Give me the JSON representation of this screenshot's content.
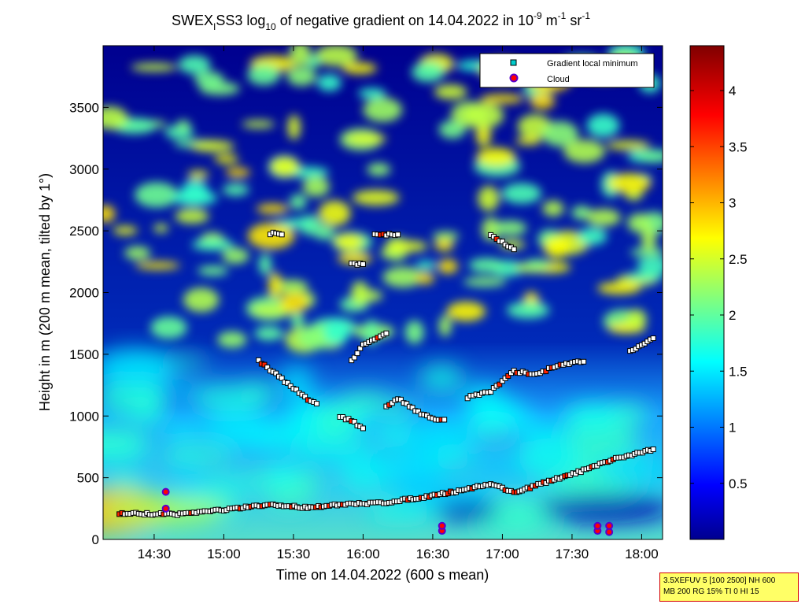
{
  "chart_data": {
    "type": "heatmap",
    "title": {
      "main": "SWEX",
      "main_sub": "I",
      "main_rest": "SS3 log",
      "log_sub": "10",
      "middle": " of negative gradient on 14.04.2022 in 10",
      "exp1": "-9",
      "unit_mid": " m",
      "exp2": "-1",
      "unit_sr": " sr",
      "exp3": "-1"
    },
    "xlabel": "Time on 14.04.2022 (600 s mean)",
    "ylabel": "Height in m (200 m mean, tilted by 1°)",
    "xlim": [
      "14:08",
      "18:09"
    ],
    "ylim": [
      0,
      4000
    ],
    "x_ticks": [
      "14:30",
      "15:00",
      "15:30",
      "16:00",
      "16:30",
      "17:00",
      "17:30",
      "18:00"
    ],
    "y_ticks": [
      0,
      500,
      1000,
      1500,
      2000,
      2500,
      3000,
      3500
    ],
    "colorbar": {
      "range": [
        0,
        4.4
      ],
      "ticks": [
        "0.5",
        "1",
        "1.5",
        "2",
        "2.5",
        "3",
        "3.5",
        "4"
      ],
      "colormap": "jet"
    },
    "legend": {
      "position": "top-right",
      "entries": [
        {
          "label": "Gradient local minimum",
          "marker": "square",
          "color": "#00cccc"
        },
        {
          "label": "Cloud",
          "marker": "circle",
          "color": "#ff0000"
        }
      ]
    },
    "gradient_minima_layers": [
      {
        "time": [
          "14:15",
          "14:40",
          "15:00",
          "15:20",
          "15:35",
          "15:50",
          "16:10",
          "16:25",
          "16:40",
          "16:55",
          "17:05",
          "17:20",
          "17:35",
          "17:50",
          "18:05"
        ],
        "height": [
          210,
          205,
          240,
          280,
          260,
          280,
          300,
          340,
          390,
          450,
          380,
          470,
          560,
          660,
          730
        ]
      },
      {
        "time": [
          "15:15",
          "15:25",
          "15:35",
          "15:40"
        ],
        "height": [
          1450,
          1300,
          1150,
          1100
        ]
      },
      {
        "time": [
          "15:50",
          "15:55",
          "16:00"
        ],
        "height": [
          1000,
          960,
          900
        ]
      },
      {
        "time": [
          "16:10",
          "16:15",
          "16:25",
          "16:30",
          "16:35"
        ],
        "height": [
          1080,
          1140,
          1020,
          980,
          970
        ]
      },
      {
        "time": [
          "16:45",
          "16:55",
          "17:05",
          "17:15",
          "17:25",
          "17:35"
        ],
        "height": [
          1150,
          1200,
          1360,
          1340,
          1420,
          1440
        ]
      },
      {
        "time": [
          "17:55",
          "18:05"
        ],
        "height": [
          1520,
          1630
        ]
      },
      {
        "time": [
          "15:55",
          "16:00",
          "16:05",
          "16:10"
        ],
        "height": [
          1450,
          1580,
          1620,
          1670
        ]
      },
      {
        "time": [
          "15:20",
          "15:25"
        ],
        "height": [
          2480,
          2470
        ]
      },
      {
        "time": [
          "15:55",
          "16:00"
        ],
        "height": [
          2230,
          2230
        ]
      },
      {
        "time": [
          "16:05",
          "16:10",
          "16:15"
        ],
        "height": [
          2470,
          2470,
          2470
        ]
      },
      {
        "time": [
          "16:55",
          "17:05"
        ],
        "height": [
          2460,
          2350
        ]
      }
    ],
    "cloud_events": [
      {
        "time": "14:35",
        "height": [
          250,
          385
        ]
      },
      {
        "time": "16:34",
        "height": [
          70,
          110
        ]
      },
      {
        "time": "17:41",
        "height": [
          70,
          110
        ]
      },
      {
        "time": "17:46",
        "height": [
          60,
          110
        ]
      }
    ]
  },
  "info_box": {
    "line1": "3.5XEFUV 5 [100 2500] NH 600",
    "line2": "MB 200 RG 15% TI 0 HI 15"
  }
}
